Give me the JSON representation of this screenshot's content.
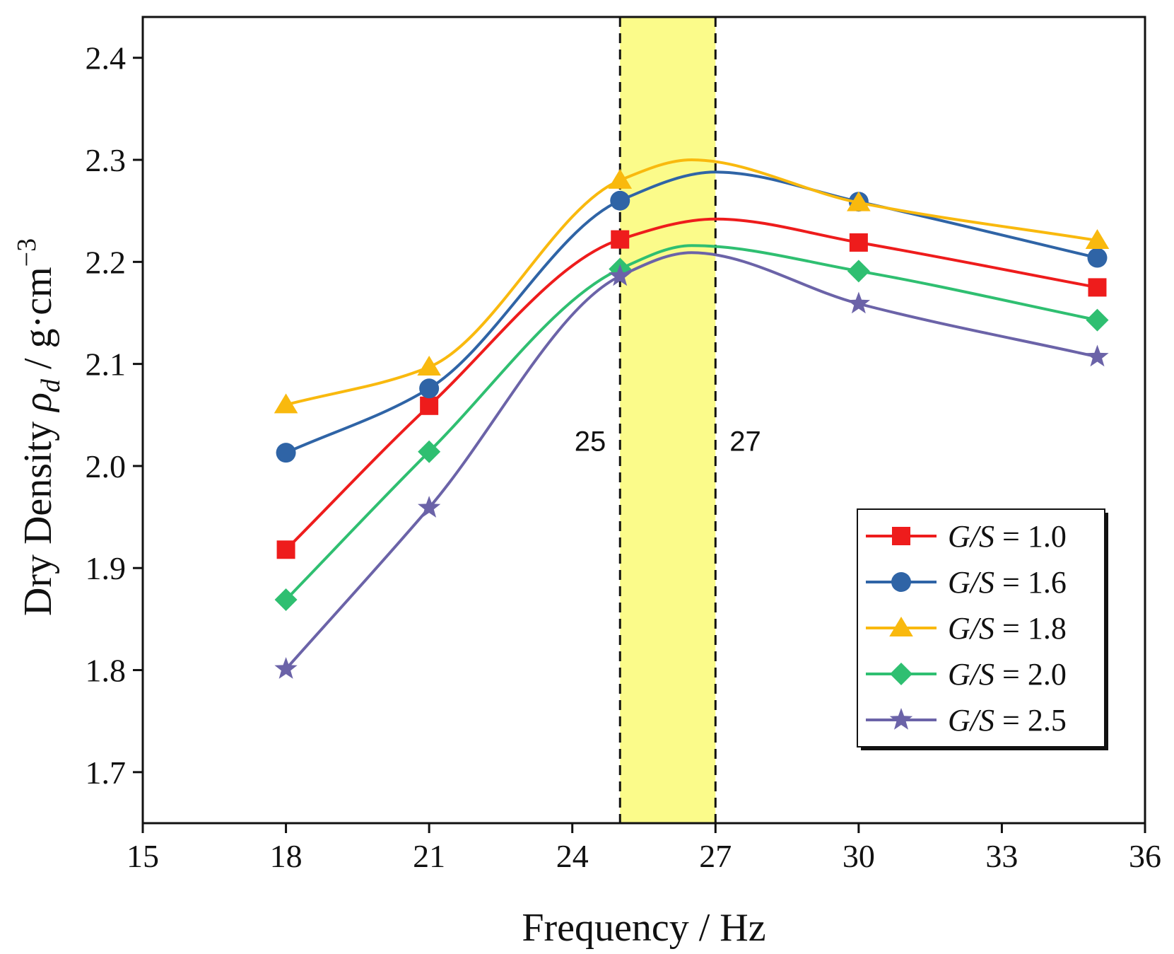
{
  "chart_data": {
    "type": "line",
    "xlabel": "Frequency / Hz",
    "ylabel": {
      "prefix": "Dry Density ",
      "symbol": "ρ",
      "subscript": "d",
      "unit": " / g·cm",
      "exponent": "−3"
    },
    "xlim": [
      15,
      36
    ],
    "ylim": [
      1.65,
      2.44
    ],
    "xticks": [
      15,
      18,
      21,
      24,
      27,
      30,
      33,
      36
    ],
    "yticks": [
      1.7,
      1.8,
      1.9,
      2.0,
      2.1,
      2.2,
      2.3,
      2.4
    ],
    "x": [
      18,
      21,
      25,
      30,
      35
    ],
    "highlight_band": {
      "range": [
        25,
        27
      ],
      "color": "#fbfb8a",
      "labels": [
        "25",
        "27"
      ]
    },
    "legend_position": "lower-right",
    "series": [
      {
        "name": {
          "var": "G/S",
          "value": " = 1.0"
        },
        "marker": "square",
        "color": "#ee1c1c",
        "values": [
          1.918,
          2.059,
          2.222,
          2.219,
          2.175
        ],
        "curve_peak": [
          27,
          2.242
        ]
      },
      {
        "name": {
          "var": "G/S",
          "value": " = 1.6"
        },
        "marker": "circle",
        "color": "#2f64a6",
        "values": [
          2.013,
          2.076,
          2.26,
          2.259,
          2.204
        ],
        "curve_peak": [
          27,
          2.288
        ]
      },
      {
        "name": {
          "var": "G/S",
          "value": " = 1.8"
        },
        "marker": "triangle",
        "color": "#f9b90e",
        "values": [
          2.06,
          2.097,
          2.28,
          2.258,
          2.221
        ],
        "curve_peak": [
          26.5,
          2.3
        ]
      },
      {
        "name": {
          "var": "G/S",
          "value": " = 2.0"
        },
        "marker": "diamond",
        "color": "#2fbf71",
        "values": [
          1.869,
          2.014,
          2.193,
          2.191,
          2.143
        ],
        "curve_peak": [
          26.5,
          2.216
        ]
      },
      {
        "name": {
          "var": "G/S",
          "value": " = 2.5"
        },
        "marker": "star",
        "color": "#6b63a8",
        "values": [
          1.801,
          1.959,
          2.186,
          2.159,
          2.107
        ],
        "curve_peak": [
          26.5,
          2.209
        ]
      }
    ]
  }
}
